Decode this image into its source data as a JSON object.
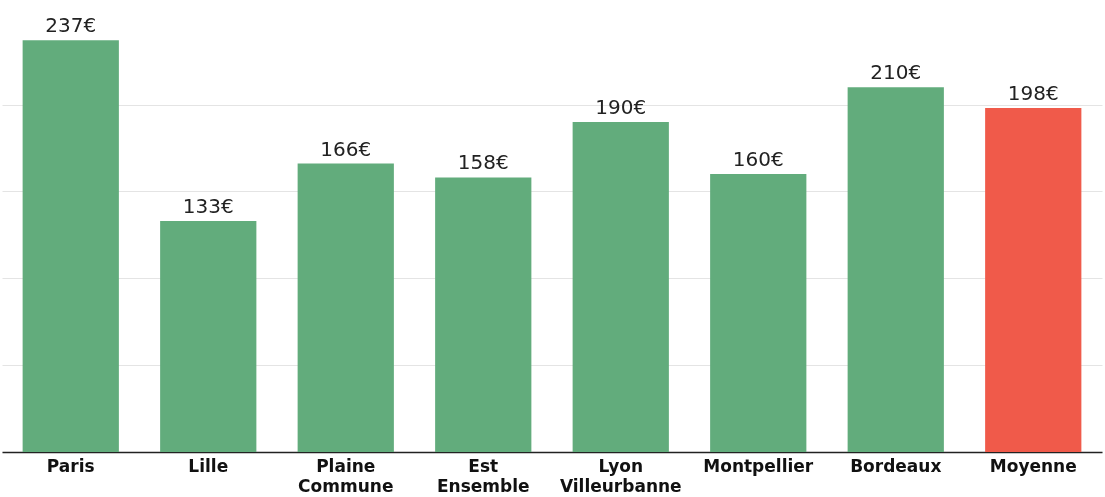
{
  "chart_data": {
    "type": "bar",
    "categories": [
      "Paris",
      "Lille",
      "Plaine Commune",
      "Est Ensemble",
      "Lyon Villeurbanne",
      "Montpellier",
      "Bordeaux",
      "Moyenne"
    ],
    "values": [
      237,
      133,
      166,
      158,
      190,
      160,
      210,
      198
    ],
    "colors": [
      "#62ac7c",
      "#62ac7c",
      "#62ac7c",
      "#62ac7c",
      "#62ac7c",
      "#62ac7c",
      "#62ac7c",
      "#f05a4a"
    ],
    "value_labels": [
      "237€",
      "133€",
      "166€",
      "158€",
      "190€",
      "160€",
      "210€",
      "198€"
    ],
    "ylim": [
      0,
      259
    ],
    "yticks": [
      {
        "value": 0,
        "label": null
      },
      {
        "value": 50,
        "label": null
      },
      {
        "value": 100,
        "label": null
      },
      {
        "value": 150,
        "label": null
      },
      {
        "value": 200,
        "label": null
      }
    ],
    "grid": "y",
    "tick_labels": "x"
  }
}
